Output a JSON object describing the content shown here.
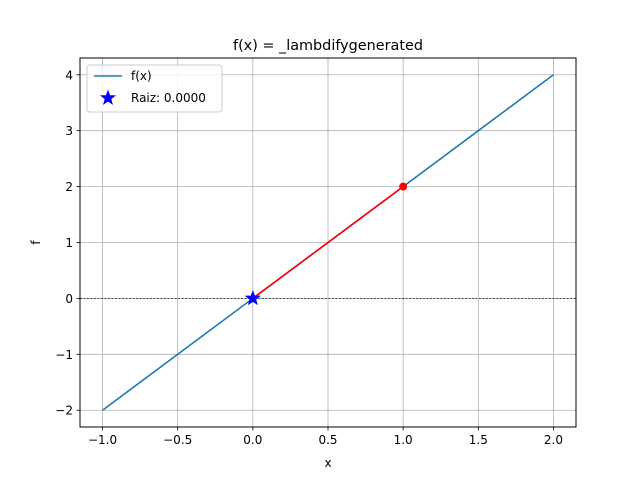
{
  "chart_data": {
    "type": "line",
    "title": "f(x) = _lambdifygenerated",
    "xlabel": "x",
    "ylabel": "f",
    "xlim": [
      -1.15,
      2.15
    ],
    "ylim": [
      -2.3,
      4.3
    ],
    "xticks": [
      -1.0,
      -0.5,
      0.0,
      0.5,
      1.0,
      1.5,
      2.0
    ],
    "xtick_labels": [
      "−1.0",
      "−0.5",
      "0.0",
      "0.5",
      "1.0",
      "1.5",
      "2.0"
    ],
    "yticks": [
      -2,
      -1,
      0,
      1,
      2,
      3,
      4
    ],
    "ytick_labels": [
      "−2",
      "−1",
      "0",
      "1",
      "2",
      "3",
      "4"
    ],
    "grid": true,
    "zero_line": true,
    "legend_position": "upper-left",
    "series": [
      {
        "name": "f(x)",
        "kind": "line",
        "color": "#1f77b4",
        "x": [
          -1.0,
          2.0
        ],
        "y": [
          -2.0,
          4.0
        ]
      },
      {
        "kind": "segment",
        "color": "#ff0000",
        "x": [
          0.0,
          1.0
        ],
        "y": [
          0.0,
          2.0
        ]
      },
      {
        "kind": "point",
        "color": "#ff0000",
        "x": [
          1.0
        ],
        "y": [
          2.0
        ]
      },
      {
        "name": "Raiz: 0.0000",
        "kind": "star",
        "color": "#0000ff",
        "x": [
          0.0
        ],
        "y": [
          0.0
        ]
      }
    ]
  }
}
